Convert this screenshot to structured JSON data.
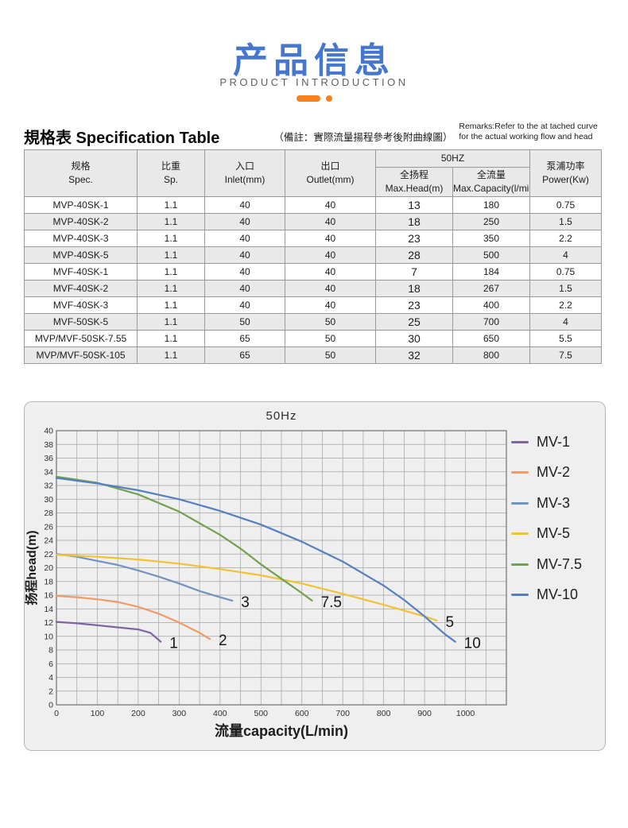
{
  "header": {
    "title": "产品信息",
    "subtitle": "PRODUCT INTRODUCTION",
    "accent_color": "#F8811E",
    "title_color": "#4577CE"
  },
  "section": {
    "heading": "規格表 Specification Table",
    "note": "（備註：實際流量揚程參考後附曲線圖）",
    "remarks": "Remarks:Refer to the at tached curve for the actual working flow and head"
  },
  "table": {
    "group_header": "50HZ",
    "columns": [
      {
        "zh": "规格",
        "en": "Spec."
      },
      {
        "zh": "比重",
        "en": "Sp."
      },
      {
        "zh": "入口",
        "en": "Inlet(mm)"
      },
      {
        "zh": "出口",
        "en": "Outlet(mm)"
      },
      {
        "zh": "全扬程",
        "en": "Max.Head(m)"
      },
      {
        "zh": "全流量",
        "en": "Max.Capacity(l/min)"
      },
      {
        "zh": "泵浦功率",
        "en": "Power(Kw)"
      }
    ],
    "rows": [
      [
        "MVP-40SK-1",
        "1.1",
        "40",
        "40",
        "13",
        "180",
        "0.75"
      ],
      [
        "MVP-40SK-2",
        "1.1",
        "40",
        "40",
        "18",
        "250",
        "1.5"
      ],
      [
        "MVP-40SK-3",
        "1.1",
        "40",
        "40",
        "23",
        "350",
        "2.2"
      ],
      [
        "MVP-40SK-5",
        "1.1",
        "40",
        "40",
        "28",
        "500",
        "4"
      ],
      [
        "MVF-40SK-1",
        "1.1",
        "40",
        "40",
        "7",
        "184",
        "0.75"
      ],
      [
        "MVF-40SK-2",
        "1.1",
        "40",
        "40",
        "18",
        "267",
        "1.5"
      ],
      [
        "MVF-40SK-3",
        "1.1",
        "40",
        "40",
        "23",
        "400",
        "2.2"
      ],
      [
        "MVF-50SK-5",
        "1.1",
        "50",
        "50",
        "25",
        "700",
        "4"
      ],
      [
        "MVP/MVF-50SK-7.55",
        "1.1",
        "65",
        "50",
        "30",
        "650",
        "5.5"
      ],
      [
        "MVP/MVF-50SK-105",
        "1.1",
        "65",
        "50",
        "32",
        "800",
        "7.5"
      ]
    ]
  },
  "chart_data": {
    "type": "line",
    "title": "50Hz",
    "xlabel": "流量capacity(L/min)",
    "ylabel": "扬程head(m)",
    "xlim": [
      0,
      1100
    ],
    "ylim": [
      0,
      40
    ],
    "x_label_step": 100,
    "x_label_max": 1000,
    "x_grid_step": 50,
    "y_grid_step": 2,
    "grid": true,
    "legend_position": "right",
    "series": [
      {
        "name": "MV-1",
        "color": "#8064A2",
        "end_label": "1",
        "points": [
          [
            0,
            12.1
          ],
          [
            50,
            11.9
          ],
          [
            100,
            11.6
          ],
          [
            150,
            11.3
          ],
          [
            200,
            11.0
          ],
          [
            230,
            10.5
          ],
          [
            255,
            9.2
          ]
        ]
      },
      {
        "name": "MV-2",
        "color": "#F09A68",
        "end_label": "2",
        "points": [
          [
            0,
            15.9
          ],
          [
            50,
            15.7
          ],
          [
            100,
            15.4
          ],
          [
            150,
            15.0
          ],
          [
            200,
            14.3
          ],
          [
            250,
            13.3
          ],
          [
            300,
            12.0
          ],
          [
            350,
            10.5
          ],
          [
            375,
            9.6
          ]
        ]
      },
      {
        "name": "MV-3",
        "color": "#7094C0",
        "end_label": "3",
        "points": [
          [
            0,
            22.0
          ],
          [
            50,
            21.6
          ],
          [
            100,
            21.0
          ],
          [
            150,
            20.4
          ],
          [
            200,
            19.6
          ],
          [
            250,
            18.7
          ],
          [
            300,
            17.7
          ],
          [
            350,
            16.6
          ],
          [
            400,
            15.7
          ],
          [
            430,
            15.2
          ]
        ]
      },
      {
        "name": "MV-5",
        "color": "#F2C233",
        "end_label": "5",
        "points": [
          [
            0,
            21.9
          ],
          [
            100,
            21.6
          ],
          [
            200,
            21.2
          ],
          [
            300,
            20.6
          ],
          [
            400,
            19.8
          ],
          [
            500,
            18.9
          ],
          [
            600,
            17.7
          ],
          [
            700,
            16.2
          ],
          [
            800,
            14.6
          ],
          [
            900,
            12.9
          ],
          [
            930,
            12.3
          ]
        ]
      },
      {
        "name": "MV-7.5",
        "color": "#71A24D",
        "end_label": "7.5",
        "points": [
          [
            0,
            33.3
          ],
          [
            100,
            32.4
          ],
          [
            200,
            30.7
          ],
          [
            300,
            28.2
          ],
          [
            400,
            24.8
          ],
          [
            450,
            22.8
          ],
          [
            500,
            20.5
          ],
          [
            550,
            18.4
          ],
          [
            600,
            16.3
          ],
          [
            625,
            15.2
          ]
        ]
      },
      {
        "name": "MV-10",
        "color": "#5580BD",
        "end_label": "10",
        "points": [
          [
            0,
            33.1
          ],
          [
            100,
            32.3
          ],
          [
            200,
            31.3
          ],
          [
            300,
            30.0
          ],
          [
            400,
            28.3
          ],
          [
            500,
            26.3
          ],
          [
            600,
            23.8
          ],
          [
            700,
            20.9
          ],
          [
            800,
            17.4
          ],
          [
            850,
            15.3
          ],
          [
            900,
            12.9
          ],
          [
            950,
            10.3
          ],
          [
            975,
            9.2
          ]
        ]
      }
    ]
  }
}
